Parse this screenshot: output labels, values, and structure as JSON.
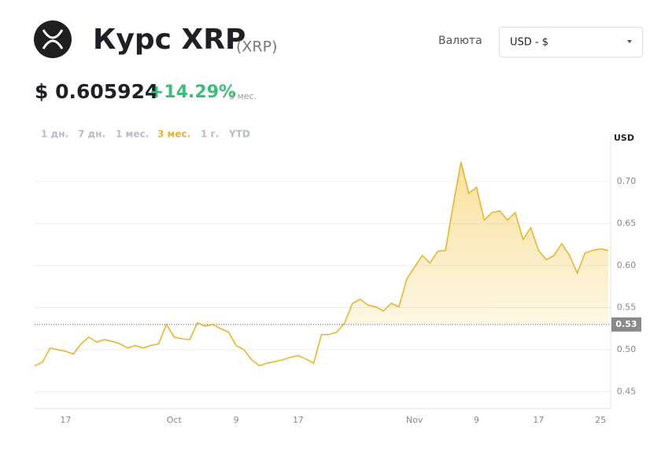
{
  "header": {
    "title": "Курс XRP",
    "symbol": "(XRP)",
    "currency_label": "Валюта",
    "currency_select": "USD - $",
    "price": "$ 0.605924",
    "change": "+14.29%",
    "change_period": "3 мес."
  },
  "tabs": {
    "items": [
      "1 дн.",
      "7 дн.",
      "1 мес.",
      "3 мес.",
      "1 г.",
      "YTD"
    ],
    "active": 3
  },
  "chart_data": {
    "type": "line",
    "y_label": "USD",
    "color": "#e8b433",
    "categories": [
      null,
      null,
      null,
      null,
      "17",
      null,
      null,
      null,
      null,
      null,
      null,
      null,
      null,
      null,
      null,
      null,
      null,
      null,
      "Oct",
      null,
      null,
      null,
      null,
      null,
      null,
      null,
      "9",
      null,
      null,
      null,
      null,
      null,
      null,
      null,
      "17",
      null,
      null,
      null,
      null,
      null,
      null,
      null,
      null,
      null,
      null,
      null,
      null,
      null,
      null,
      "Nov",
      null,
      null,
      null,
      null,
      null,
      null,
      null,
      "9",
      null,
      null,
      null,
      null,
      null,
      null,
      null,
      "17",
      null,
      null,
      null,
      null,
      null,
      null,
      null,
      "25",
      null
    ],
    "values": [
      0.481,
      0.485,
      0.502,
      0.5,
      0.498,
      0.495,
      0.507,
      0.515,
      0.509,
      0.512,
      0.51,
      0.507,
      0.502,
      0.505,
      0.502,
      0.505,
      0.507,
      0.53,
      0.515,
      0.513,
      0.512,
      0.532,
      0.528,
      0.53,
      0.525,
      0.521,
      0.505,
      0.5,
      0.488,
      0.481,
      0.484,
      0.486,
      0.488,
      0.491,
      0.493,
      0.489,
      0.484,
      0.518,
      0.518,
      0.521,
      0.532,
      0.555,
      0.56,
      0.553,
      0.551,
      0.546,
      0.555,
      0.551,
      0.584,
      0.598,
      0.612,
      0.603,
      0.617,
      0.618,
      0.672,
      0.723,
      0.686,
      0.693,
      0.654,
      0.663,
      0.665,
      0.654,
      0.663,
      0.631,
      0.645,
      0.618,
      0.607,
      0.612,
      0.626,
      0.612,
      0.591,
      0.615,
      0.618,
      0.62,
      0.618
    ],
    "ylim": [
      0.43,
      0.74
    ],
    "yticks": [
      {
        "value": 0.45,
        "label": "0.45"
      },
      {
        "value": 0.5,
        "label": "0.50"
      },
      {
        "value": 0.55,
        "label": "0.55"
      },
      {
        "value": 0.6,
        "label": "0.60"
      },
      {
        "value": 0.65,
        "label": "0.65"
      },
      {
        "value": 0.7,
        "label": "0.70"
      }
    ],
    "reference_line": {
      "value": 0.53
    },
    "grid": true
  }
}
